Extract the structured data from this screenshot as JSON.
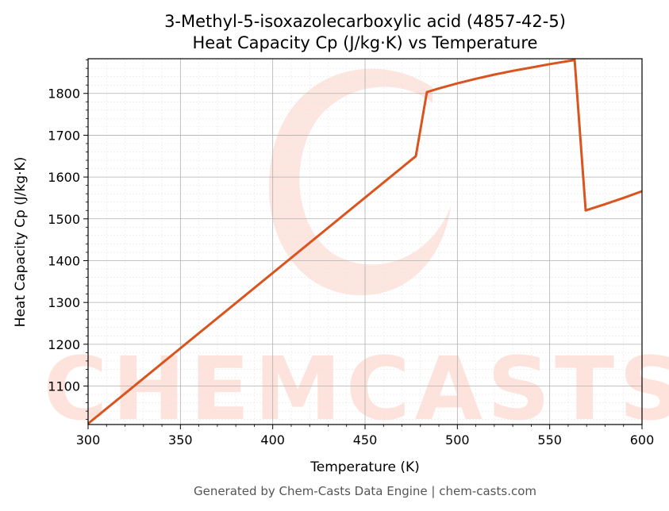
{
  "chart_data": {
    "type": "line",
    "title_line1": "3-Methyl-5-isoxazolecarboxylic acid (4857-42-5)",
    "title_line2": "Heat Capacity Cp (J/kg·K) vs Temperature",
    "xlabel": "Temperature (K)",
    "ylabel": "Heat Capacity Cp (J/kg·K)",
    "xlim": [
      300,
      600
    ],
    "ylim": [
      1008,
      1883
    ],
    "x_ticks": [
      300,
      350,
      400,
      450,
      500,
      550,
      600
    ],
    "y_ticks": [
      1100,
      1200,
      1300,
      1400,
      1500,
      1600,
      1700,
      1800
    ],
    "grid": true,
    "line_color": "#d9541e",
    "series": [
      {
        "x": [
          300,
          477.5,
          483.5,
          490,
          500,
          510,
          520,
          530,
          540,
          550,
          563.5,
          569.5,
          580,
          590,
          600
        ],
        "y": [
          1010,
          1650,
          1803,
          1812,
          1824,
          1835,
          1845,
          1854,
          1862,
          1870,
          1880,
          1520,
          1535,
          1550,
          1566
        ]
      }
    ]
  },
  "watermark": {
    "text": "CHEMCASTS",
    "color": "#fde3dc"
  },
  "footer": "Generated by Chem-Casts Data Engine | chem-casts.com"
}
